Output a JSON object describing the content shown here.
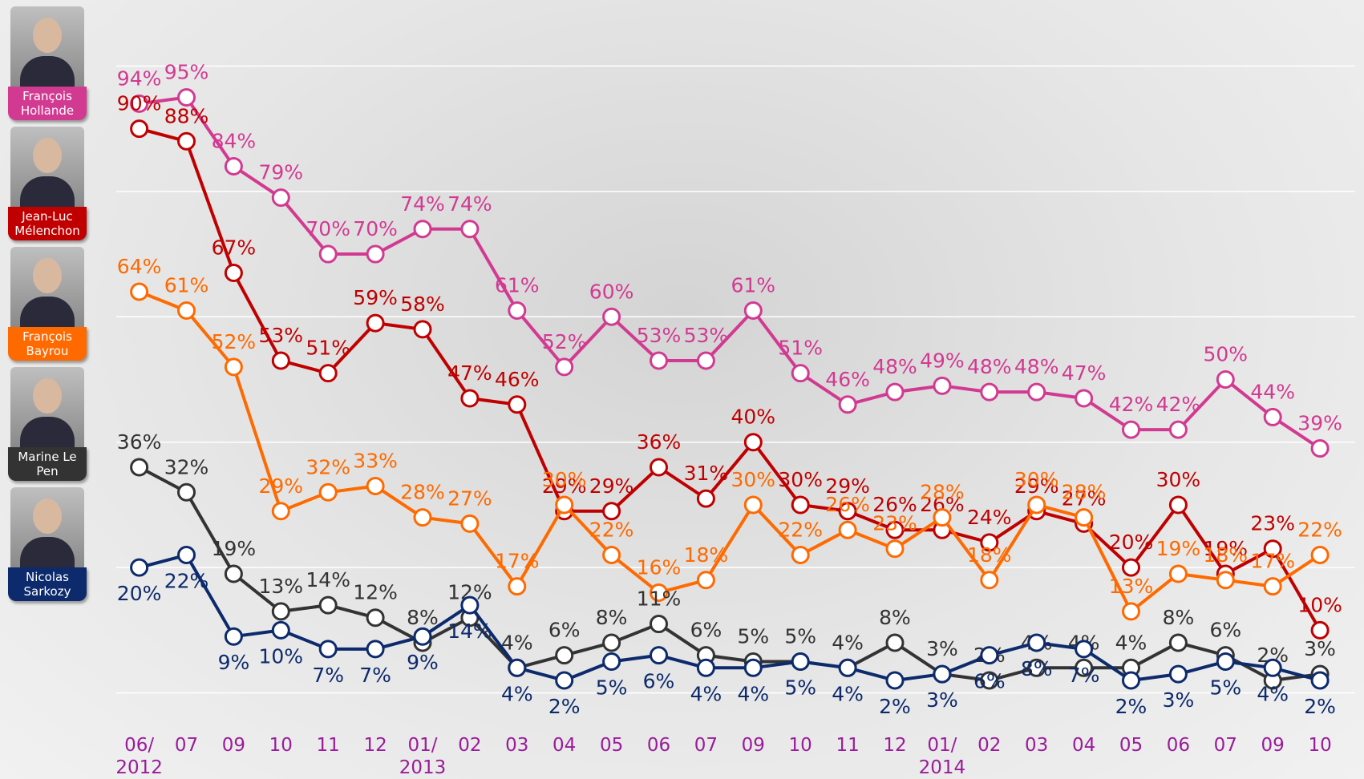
{
  "chart_data": {
    "type": "line",
    "categories": [
      "06/\n2012",
      "07",
      "09",
      "10",
      "11",
      "12",
      "01/\n2013",
      "02",
      "03",
      "04",
      "05",
      "06",
      "07",
      "09",
      "10",
      "11",
      "12",
      "01/\n2014",
      "02",
      "03",
      "04",
      "05",
      "06",
      "07",
      "09",
      "10"
    ],
    "ylim": [
      0,
      100
    ],
    "yticks": [
      0,
      20,
      40,
      60,
      80,
      100
    ],
    "grid": true,
    "series": [
      {
        "name": "François Hollande",
        "color": "#d23a92",
        "values": [
          94,
          95,
          84,
          79,
          70,
          70,
          74,
          74,
          61,
          52,
          60,
          53,
          53,
          61,
          51,
          46,
          48,
          49,
          48,
          48,
          47,
          42,
          42,
          50,
          44,
          39
        ],
        "value_labels": [
          "94%",
          "95%",
          "84%",
          "79%",
          "70%",
          "70%",
          "74%",
          "74%",
          "61%",
          "52%",
          "60%",
          "53%",
          "53%",
          "61%",
          "51%",
          "46%",
          "48%",
          "49%",
          "48%",
          "48%",
          "47%",
          "42%",
          "42%",
          "50%",
          "44%",
          "39%"
        ]
      },
      {
        "name": "Jean-Luc Mélenchon",
        "color": "#c00000",
        "values": [
          90,
          88,
          67,
          53,
          51,
          59,
          58,
          47,
          46,
          29,
          29,
          36,
          31,
          40,
          30,
          29,
          26,
          26,
          24,
          29,
          27,
          20,
          30,
          19,
          23,
          10
        ],
        "value_labels": [
          "90%",
          "88%",
          "67%",
          "53%",
          "51%",
          "59%",
          "58%",
          "47%",
          "46%",
          "29%",
          "29%",
          "36%",
          "31%",
          "40%",
          "30%",
          "29%",
          "26%",
          "26%",
          "24%",
          "29%",
          "27%",
          "20%",
          "30%",
          "19%",
          "23%",
          "10%"
        ]
      },
      {
        "name": "François Bayrou",
        "color": "#ff6a00",
        "values": [
          64,
          61,
          52,
          29,
          32,
          33,
          28,
          27,
          17,
          30,
          22,
          16,
          18,
          30,
          22,
          26,
          23,
          28,
          18,
          30,
          28,
          13,
          19,
          18,
          17,
          22
        ],
        "value_labels": [
          "64%",
          "61%",
          "52%",
          "29%",
          "32%",
          "33%",
          "28%",
          "27%",
          "17%",
          "30%",
          "22%",
          "16%",
          "18%",
          "30%",
          "22%",
          "26%",
          "23%",
          "28%",
          "18%",
          "30%",
          "28%",
          "13%",
          "19%",
          "18%",
          "17%",
          "22%"
        ]
      },
      {
        "name": "Marine Le Pen",
        "color": "#333333",
        "values": [
          36,
          32,
          19,
          13,
          14,
          12,
          8,
          12,
          4,
          6,
          8,
          11,
          6,
          5,
          5,
          4,
          8,
          3,
          2,
          4,
          4,
          4,
          8,
          6,
          2,
          3
        ],
        "value_labels": [
          "36%",
          "32%",
          "19%",
          "13%",
          "14%",
          "12%",
          "8%",
          "12%",
          "4%",
          "6%",
          "8%",
          "11%",
          "6%",
          "5%",
          "5%",
          "4%",
          "8%",
          "3%",
          "2%",
          "4%",
          "4%",
          "4%",
          "8%",
          "6%",
          "2%",
          "3%"
        ]
      },
      {
        "name": "Nicolas Sarkozy",
        "color": "#0c2a6c",
        "values": [
          20,
          22,
          9,
          10,
          7,
          7,
          9,
          14,
          4,
          2,
          5,
          6,
          4,
          4,
          5,
          4,
          2,
          3,
          6,
          8,
          7,
          2,
          3,
          5,
          4,
          2
        ],
        "value_labels": [
          "20%",
          "22%",
          "9%",
          "10%",
          "7%",
          "7%",
          "9%",
          "14%",
          "4%",
          "2%",
          "5%",
          "6%",
          "4%",
          "4%",
          "5%",
          "4%",
          "2%",
          "3%",
          "6%",
          "8%",
          "7%",
          "2%",
          "3%",
          "5%",
          "4%",
          "2%"
        ]
      }
    ]
  }
}
